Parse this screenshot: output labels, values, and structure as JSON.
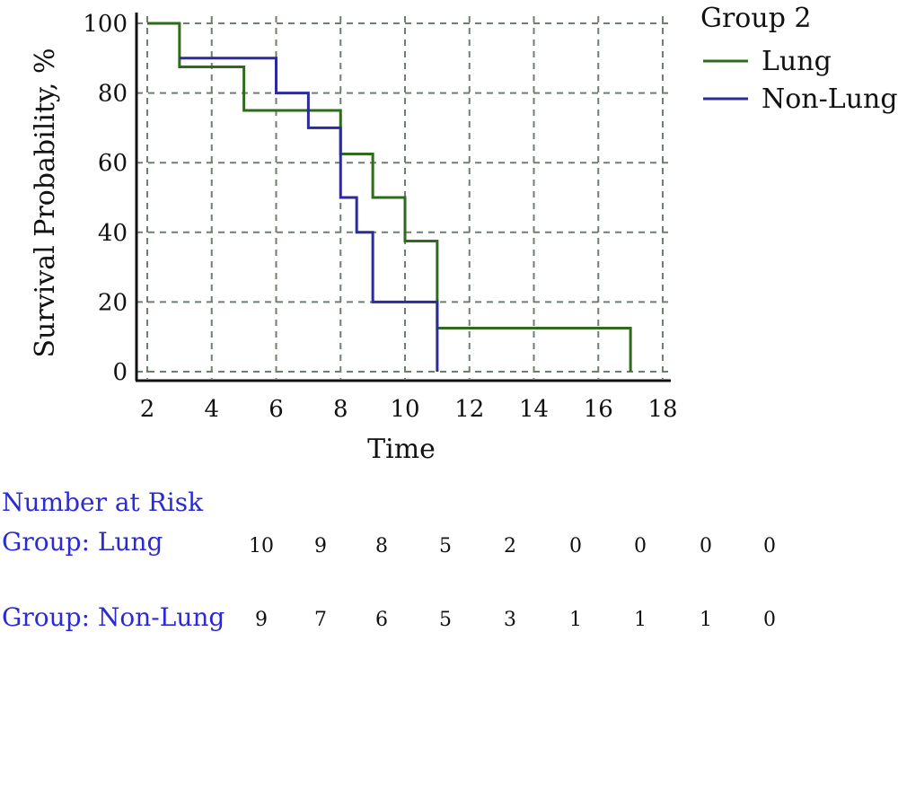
{
  "chart_data": {
    "type": "line",
    "step": true,
    "xlabel": "Time",
    "ylabel": "Survival Probability, %",
    "xlim": [
      2,
      18
    ],
    "ylim": [
      0,
      100
    ],
    "x_ticks": [
      "2",
      "4",
      "6",
      "8",
      "10",
      "12",
      "14",
      "16",
      "18"
    ],
    "y_ticks": [
      "0",
      "20",
      "40",
      "60",
      "80",
      "100"
    ],
    "grid": true,
    "legend_title": "Group 2",
    "legend_position": "top-right",
    "series": [
      {
        "name": "Lung",
        "color": "#2e6b1d",
        "x": [
          2,
          3,
          5,
          8,
          9,
          10,
          11,
          17
        ],
        "y": [
          100,
          87.5,
          75,
          62.5,
          50,
          37.5,
          12.5,
          0
        ]
      },
      {
        "name": "Non-Lung",
        "color": "#2b2b9a",
        "x": [
          3,
          6,
          7,
          8,
          8.5,
          9,
          11
        ],
        "y": [
          90,
          80,
          70,
          50,
          40,
          20,
          0
        ]
      }
    ]
  },
  "risk_table": {
    "title": "Number at Risk",
    "rows": [
      {
        "label": "Group: Lung",
        "counts": [
          "10",
          "9",
          "8",
          "5",
          "2",
          "0",
          "0",
          "0",
          "0"
        ]
      },
      {
        "label": "Group: Non-Lung",
        "counts": [
          "9",
          "7",
          "6",
          "5",
          "3",
          "1",
          "1",
          "1",
          "0"
        ]
      }
    ]
  }
}
